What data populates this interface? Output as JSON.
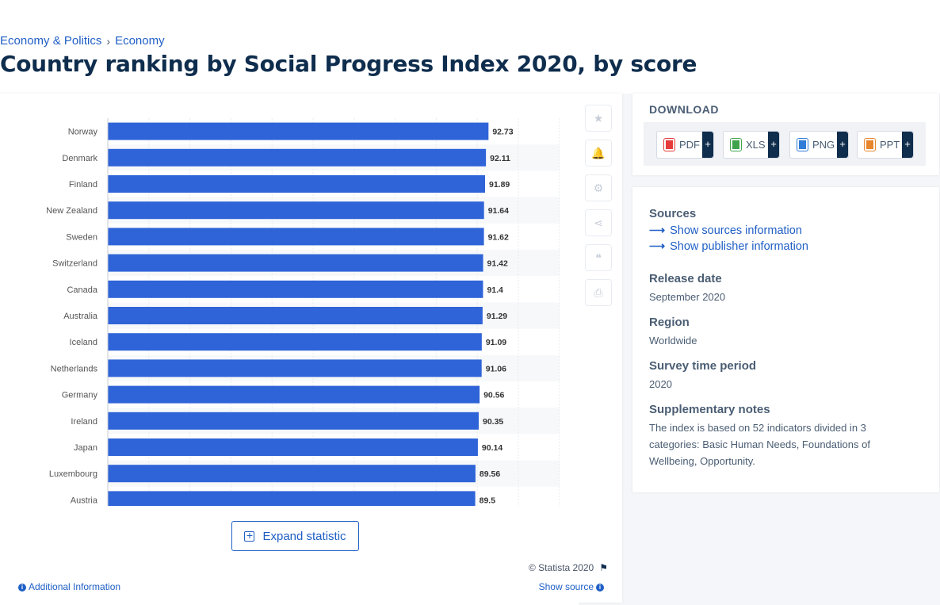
{
  "breadcrumb": {
    "item1": "Economy & Politics",
    "sep": "›",
    "item2": "Economy"
  },
  "page_title": "Country ranking by Social Progress Index 2020, by score",
  "chart_data": {
    "type": "bar",
    "orientation": "horizontal",
    "categories": [
      "Norway",
      "Denmark",
      "Finland",
      "New Zealand",
      "Sweden",
      "Switzerland",
      "Canada",
      "Australia",
      "Iceland",
      "Netherlands",
      "Germany",
      "Ireland",
      "Japan",
      "Luxembourg",
      "Austria"
    ],
    "values": [
      92.73,
      92.11,
      91.89,
      91.64,
      91.62,
      91.42,
      91.4,
      91.29,
      91.09,
      91.06,
      90.56,
      90.35,
      90.14,
      89.56,
      89.5
    ],
    "value_labels": [
      "92.73",
      "92.11",
      "91.89",
      "91.64",
      "91.62",
      "91.42",
      "91.4",
      "91.29",
      "91.09",
      "91.06",
      "90.56",
      "90.35",
      "90.14",
      "89.56",
      "89.5"
    ],
    "xlim": [
      0,
      110
    ],
    "bar_color": "#2f64d8",
    "label_color": "#333333",
    "grid": true,
    "title": "",
    "xlabel": "",
    "ylabel": ""
  },
  "toolbar": {
    "icons": [
      "star-icon",
      "bell-icon",
      "gear-icon",
      "share-icon",
      "quote-icon",
      "print-icon"
    ],
    "glyphs": [
      "★",
      "🔔",
      "⚙",
      "⋖",
      "❝",
      "⎙"
    ]
  },
  "expand_label": "Expand statistic",
  "copyright": "© Statista 2020",
  "additional_info": "Additional Information",
  "show_source": "Show source",
  "download": {
    "title": "DOWNLOAD",
    "buttons": [
      {
        "label": "PDF",
        "color": "#e53b3b"
      },
      {
        "label": "XLS",
        "color": "#3fa34d"
      },
      {
        "label": "PNG",
        "color": "#2f7bd8"
      },
      {
        "label": "PPT",
        "color": "#e8862e"
      }
    ],
    "plus": "+"
  },
  "info": {
    "sources_title": "Sources",
    "show_sources": "Show sources information",
    "show_publisher": "Show publisher information",
    "release_title": "Release date",
    "release_value": "September 2020",
    "region_title": "Region",
    "region_value": "Worldwide",
    "survey_title": "Survey time period",
    "survey_value": "2020",
    "notes_title": "Supplementary notes",
    "notes_value": "The index is based on 52 indicators divided in 3 categories: Basic Human Needs, Foundations of Wellbeing, Opportunity."
  }
}
